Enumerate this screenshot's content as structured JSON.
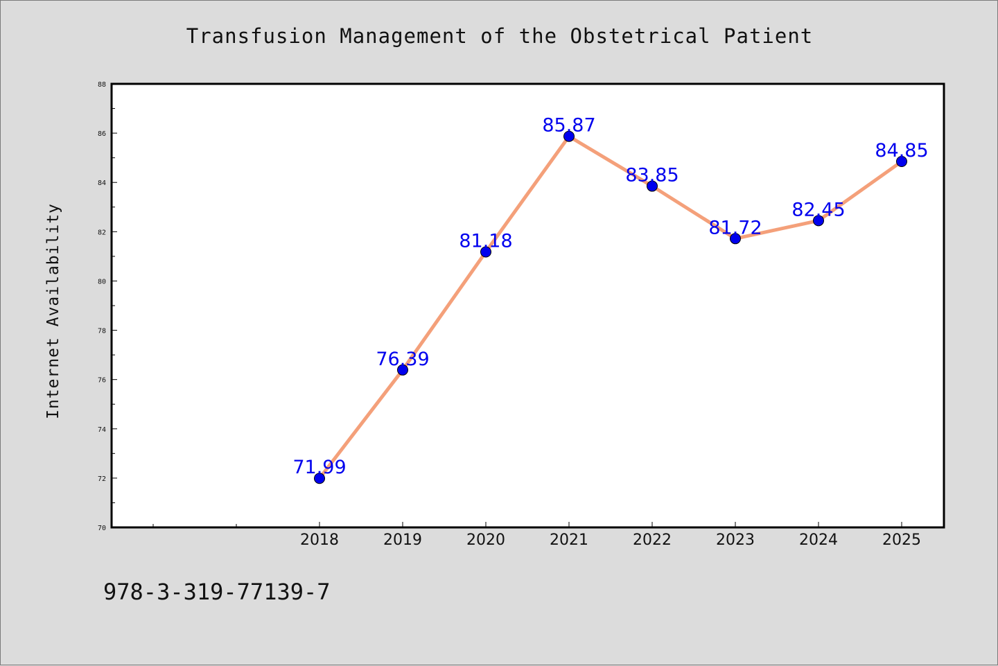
{
  "chart_data": {
    "type": "line",
    "title": "Transfusion Management of the Obstetrical Patient",
    "xlabel": "",
    "ylabel": "Internet Availability",
    "x": [
      "2018",
      "2019",
      "2020",
      "2021",
      "2022",
      "2023",
      "2024",
      "2025"
    ],
    "series": [
      {
        "values": [
          71.99,
          76.39,
          81.18,
          85.87,
          83.85,
          81.72,
          82.45,
          84.85
        ],
        "labels": [
          "71.99",
          "76.39",
          "81.18",
          "85.87",
          "83.85",
          "81.72",
          "82.45",
          "84.85"
        ]
      }
    ],
    "ylim": [
      70,
      88
    ],
    "yticks": [
      "70",
      "72",
      "74",
      "76",
      "78",
      "80",
      "82",
      "84",
      "86",
      "88"
    ],
    "grid": false,
    "line_color": "#f4a07a",
    "marker_color": "#0000ee",
    "label_color": "#0000ee"
  },
  "footer": {
    "isbn": "978-3-319-77139-7"
  }
}
